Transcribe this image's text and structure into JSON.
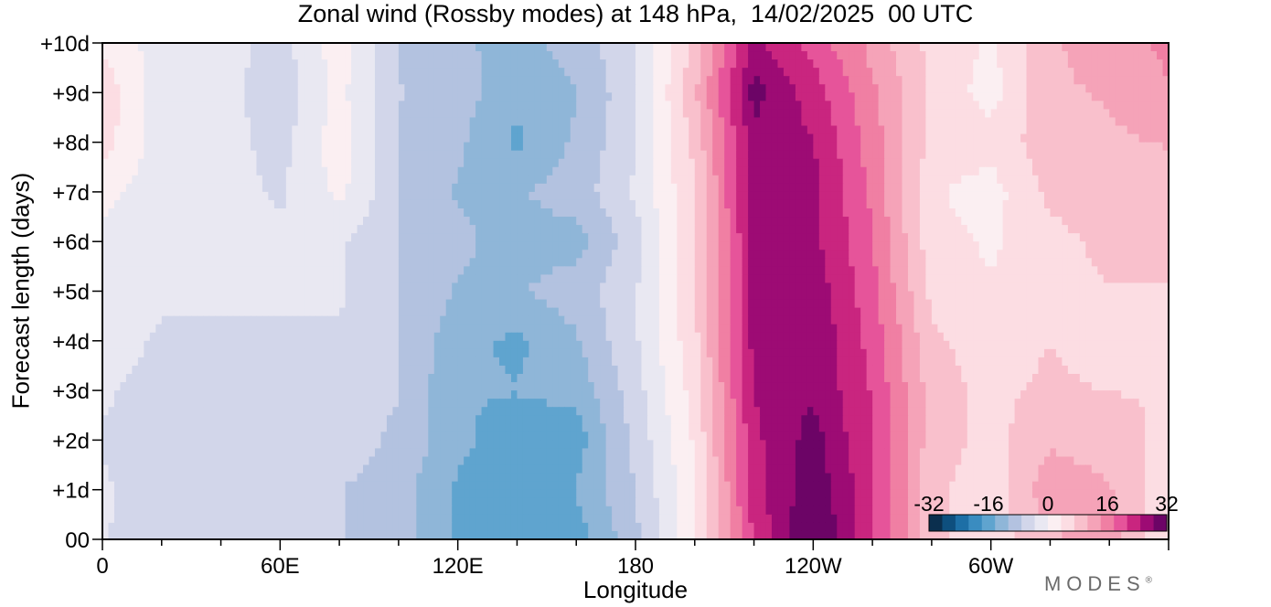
{
  "chart_data": {
    "type": "heatmap",
    "title": "Zonal wind (Rossby modes) at 148 hPa,  14/02/2025  00 UTC",
    "xlabel": "Longitude",
    "ylabel": "Forecast length (days)",
    "x_ticks": [
      "0",
      "60E",
      "120E",
      "180",
      "120W",
      "60W"
    ],
    "x_tick_values": [
      0,
      60,
      120,
      180,
      240,
      300
    ],
    "y_ticks": [
      "00",
      "+1d",
      "+2d",
      "+3d",
      "+4d",
      "+5d",
      "+6d",
      "+7d",
      "+8d",
      "+9d",
      "+10d"
    ],
    "y_tick_values": [
      0,
      1,
      2,
      3,
      4,
      5,
      6,
      7,
      8,
      9,
      10
    ],
    "xlim": [
      0,
      360
    ],
    "ylim": [
      0,
      10
    ],
    "x_unit": "degrees east",
    "colorbar": {
      "labels": [
        "-32",
        "-16",
        "0",
        "16",
        "32"
      ],
      "label_values": [
        -32,
        -16,
        0,
        16,
        32
      ],
      "placement": "bottom-right",
      "colors": [
        "#0b2f4e",
        "#0e4f7e",
        "#1d6fa6",
        "#3a8cc0",
        "#5fa4cf",
        "#8fb6d8",
        "#b3c2e0",
        "#d2d6ea",
        "#e9e8f2",
        "#fbeff2",
        "#fcdde3",
        "#f9c0cc",
        "#f5a3b8",
        "#f07fa3",
        "#e6549a",
        "#c9257f",
        "#9d0b74",
        "#6c0466"
      ]
    },
    "longitudes": [
      0,
      20,
      40,
      60,
      80,
      100,
      120,
      140,
      160,
      180,
      200,
      220,
      240,
      260,
      280,
      300,
      320,
      340,
      360
    ],
    "days": [
      0,
      1,
      2,
      3,
      4,
      5,
      6,
      7,
      8,
      9,
      10
    ],
    "values": [
      [
        -3,
        -7,
        -6,
        -6,
        -7,
        -9,
        -15,
        -18,
        -16,
        -8,
        3,
        22,
        33,
        22,
        8,
        5,
        10,
        12,
        4
      ],
      [
        -3,
        -6,
        -6,
        -6,
        -7,
        -9,
        -15,
        -16,
        -14,
        -7,
        3,
        23,
        31,
        22,
        8,
        5,
        13,
        11,
        4
      ],
      [
        -4,
        -6,
        -6,
        -5,
        -5,
        -8,
        -13,
        -17,
        -16,
        -6,
        4,
        24,
        30,
        21,
        9,
        6,
        10,
        9,
        6
      ],
      [
        -3,
        -5,
        -5,
        -5,
        -4,
        -7,
        -14,
        -14,
        -13,
        -5,
        5,
        25,
        28,
        21,
        9,
        6,
        8,
        7,
        7
      ],
      [
        -2,
        -4,
        -4,
        -4,
        -4,
        -7,
        -13,
        -15,
        -11,
        -4,
        6,
        26,
        28,
        20,
        8,
        5,
        7,
        5,
        6
      ],
      [
        -1,
        -3,
        -3,
        -3,
        -3,
        -7,
        -11,
        -11,
        -9,
        -4,
        7,
        26,
        27,
        19,
        6,
        4,
        6,
        7,
        7
      ],
      [
        -1,
        -2,
        -2,
        -3,
        -3,
        -7,
        -10,
        -12,
        -12,
        -5,
        7,
        26,
        26,
        18,
        5,
        3,
        6,
        8,
        8
      ],
      [
        1,
        -2,
        -2,
        -4,
        1,
        -7,
        -11,
        -11,
        -9,
        -3,
        7,
        27,
        26,
        17,
        4,
        2,
        8,
        9,
        8
      ],
      [
        5,
        -2,
        -2,
        -5,
        2,
        -7,
        -10,
        -15,
        -10,
        -4,
        8,
        27,
        25,
        16,
        6,
        5,
        9,
        10,
        11
      ],
      [
        6,
        -2,
        -2,
        -6,
        1,
        -7,
        -9,
        -13,
        -11,
        -4,
        10,
        30,
        23,
        15,
        6,
        2,
        10,
        11,
        14
      ],
      [
        3,
        -2,
        -2,
        -5,
        2,
        -7,
        -10,
        -12,
        -9,
        -4,
        8,
        26,
        20,
        13,
        6,
        3,
        10,
        13,
        15
      ]
    ],
    "watermark": "MODES"
  }
}
